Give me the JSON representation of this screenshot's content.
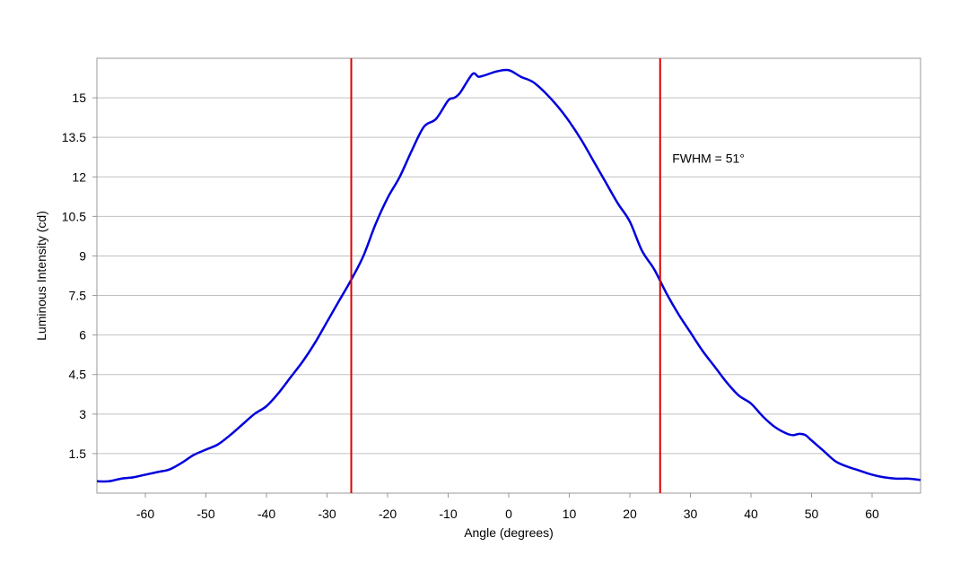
{
  "chart_data": {
    "type": "line",
    "title": "",
    "xlabel": "Angle (degrees)",
    "ylabel": "Luminous Intensity (cd)",
    "xlim": [
      -68,
      68
    ],
    "ylim": [
      0,
      16.5
    ],
    "x_ticks": [
      -60,
      -50,
      -40,
      -30,
      -20,
      -10,
      0,
      10,
      20,
      30,
      40,
      50,
      60
    ],
    "x_tick_labels": [
      "-60",
      "-50",
      "-40",
      "-30",
      "-20",
      "-10",
      "0",
      "10",
      "20",
      "30",
      "40",
      "50",
      "60"
    ],
    "y_ticks": [
      1.5,
      3,
      4.5,
      6,
      7.5,
      9,
      10.5,
      12,
      13.5,
      15
    ],
    "y_tick_labels": [
      "1.5",
      "3",
      "4.5",
      "6",
      "7.5",
      "9",
      "10.5",
      "12",
      "13.5",
      "15"
    ],
    "grid": "horizontal",
    "line_color": "#0000dd",
    "marker_color": "#dd0000",
    "series": [
      {
        "x": [
          -68,
          -66,
          -64,
          -62,
          -60,
          -58,
          -56,
          -54,
          -52,
          -50,
          -48,
          -46,
          -44,
          -42,
          -40,
          -38,
          -36,
          -34,
          -32,
          -30,
          -28,
          -26,
          -24,
          -22,
          -20,
          -18,
          -16,
          -14,
          -12,
          -10,
          -9,
          -8,
          -6,
          -5,
          -4,
          -2,
          0,
          2,
          4,
          6,
          8,
          10,
          12,
          14,
          16,
          18,
          20,
          22,
          24,
          26,
          28,
          30,
          32,
          34,
          36,
          38,
          40,
          42,
          44,
          46,
          47,
          48,
          49,
          50,
          52,
          54,
          56,
          58,
          60,
          62,
          64,
          66,
          68
        ],
        "y": [
          0.45,
          0.45,
          0.55,
          0.6,
          0.7,
          0.8,
          0.9,
          1.15,
          1.45,
          1.65,
          1.85,
          2.2,
          2.6,
          3.0,
          3.3,
          3.8,
          4.4,
          5.0,
          5.7,
          6.5,
          7.3,
          8.1,
          9.0,
          10.2,
          11.2,
          12.0,
          13.0,
          13.9,
          14.2,
          14.9,
          15.0,
          15.2,
          15.9,
          15.8,
          15.85,
          16.0,
          16.05,
          15.8,
          15.6,
          15.2,
          14.7,
          14.1,
          13.4,
          12.6,
          11.8,
          11.0,
          10.3,
          9.2,
          8.5,
          7.6,
          6.8,
          6.1,
          5.4,
          4.8,
          4.2,
          3.7,
          3.4,
          2.9,
          2.5,
          2.25,
          2.2,
          2.25,
          2.2,
          2.0,
          1.6,
          1.2,
          1.0,
          0.85,
          0.7,
          0.6,
          0.55,
          0.55,
          0.5
        ]
      }
    ],
    "vertical_markers": [
      -26,
      25
    ],
    "annotations": [
      {
        "text": "FWHM = 51°",
        "x": 27,
        "y": 12.7
      }
    ]
  }
}
